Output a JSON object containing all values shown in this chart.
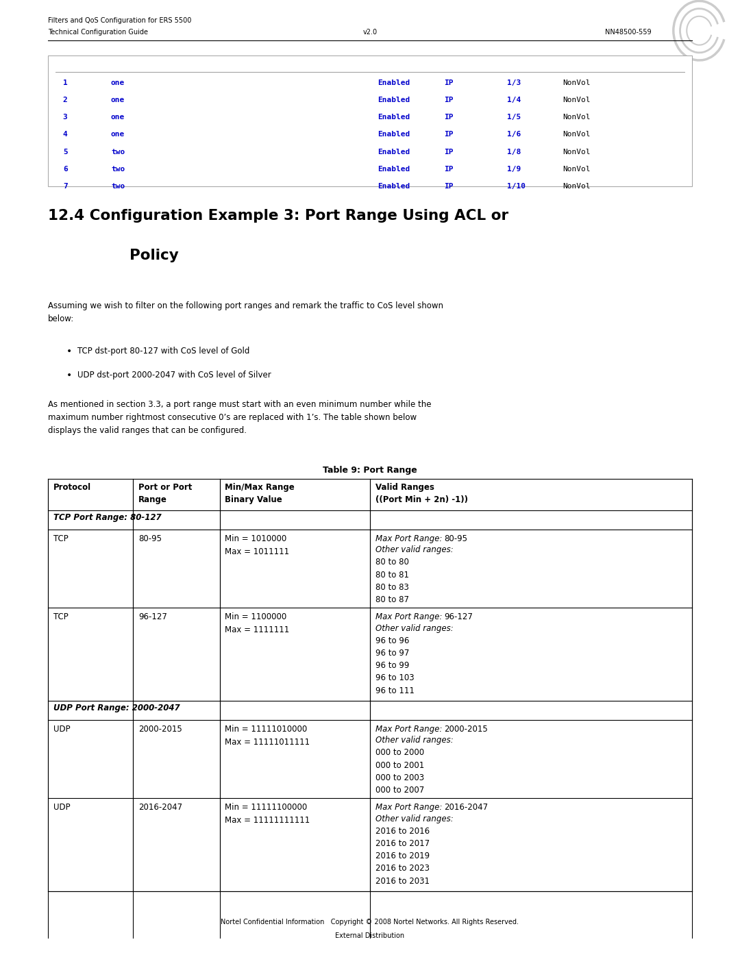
{
  "page_width": 10.8,
  "page_height": 13.97,
  "bg_color": "#ffffff",
  "header_line1": "Filters and QoS Configuration for ERS 5500",
  "header_line2": "Technical Configuration Guide",
  "header_center": "v2.0",
  "header_right": "NN48500-559",
  "top_table_rows": [
    [
      "1",
      "one",
      "Enabled",
      "IP",
      "1/3",
      "NonVol"
    ],
    [
      "2",
      "one",
      "Enabled",
      "IP",
      "1/4",
      "NonVol"
    ],
    [
      "3",
      "one",
      "Enabled",
      "IP",
      "1/5",
      "NonVol"
    ],
    [
      "4",
      "one",
      "Enabled",
      "IP",
      "1/6",
      "NonVol"
    ],
    [
      "5",
      "two",
      "Enabled",
      "IP",
      "1/8",
      "NonVol"
    ],
    [
      "6",
      "two",
      "Enabled",
      "IP",
      "1/9",
      "NonVol"
    ],
    [
      "7",
      "two",
      "Enabled",
      "IP",
      "1/10",
      "NonVol"
    ]
  ],
  "section_title_line1": "12.4 Configuration Example 3: Port Range Using ACL or",
  "section_title_line2": "Policy",
  "bullet1": "TCP dst-port 80-127 with CoS level of Gold",
  "bullet2": "UDP dst-port 2000-2047 with CoS level of Silver",
  "table_title": "Table 9: Port Range",
  "footer_text": "Nortel Confidential Information   Copyright © 2008 Nortel Networks. All Rights Reserved.",
  "footer_text2": "External Distribution",
  "blue_color": "#0000cc"
}
